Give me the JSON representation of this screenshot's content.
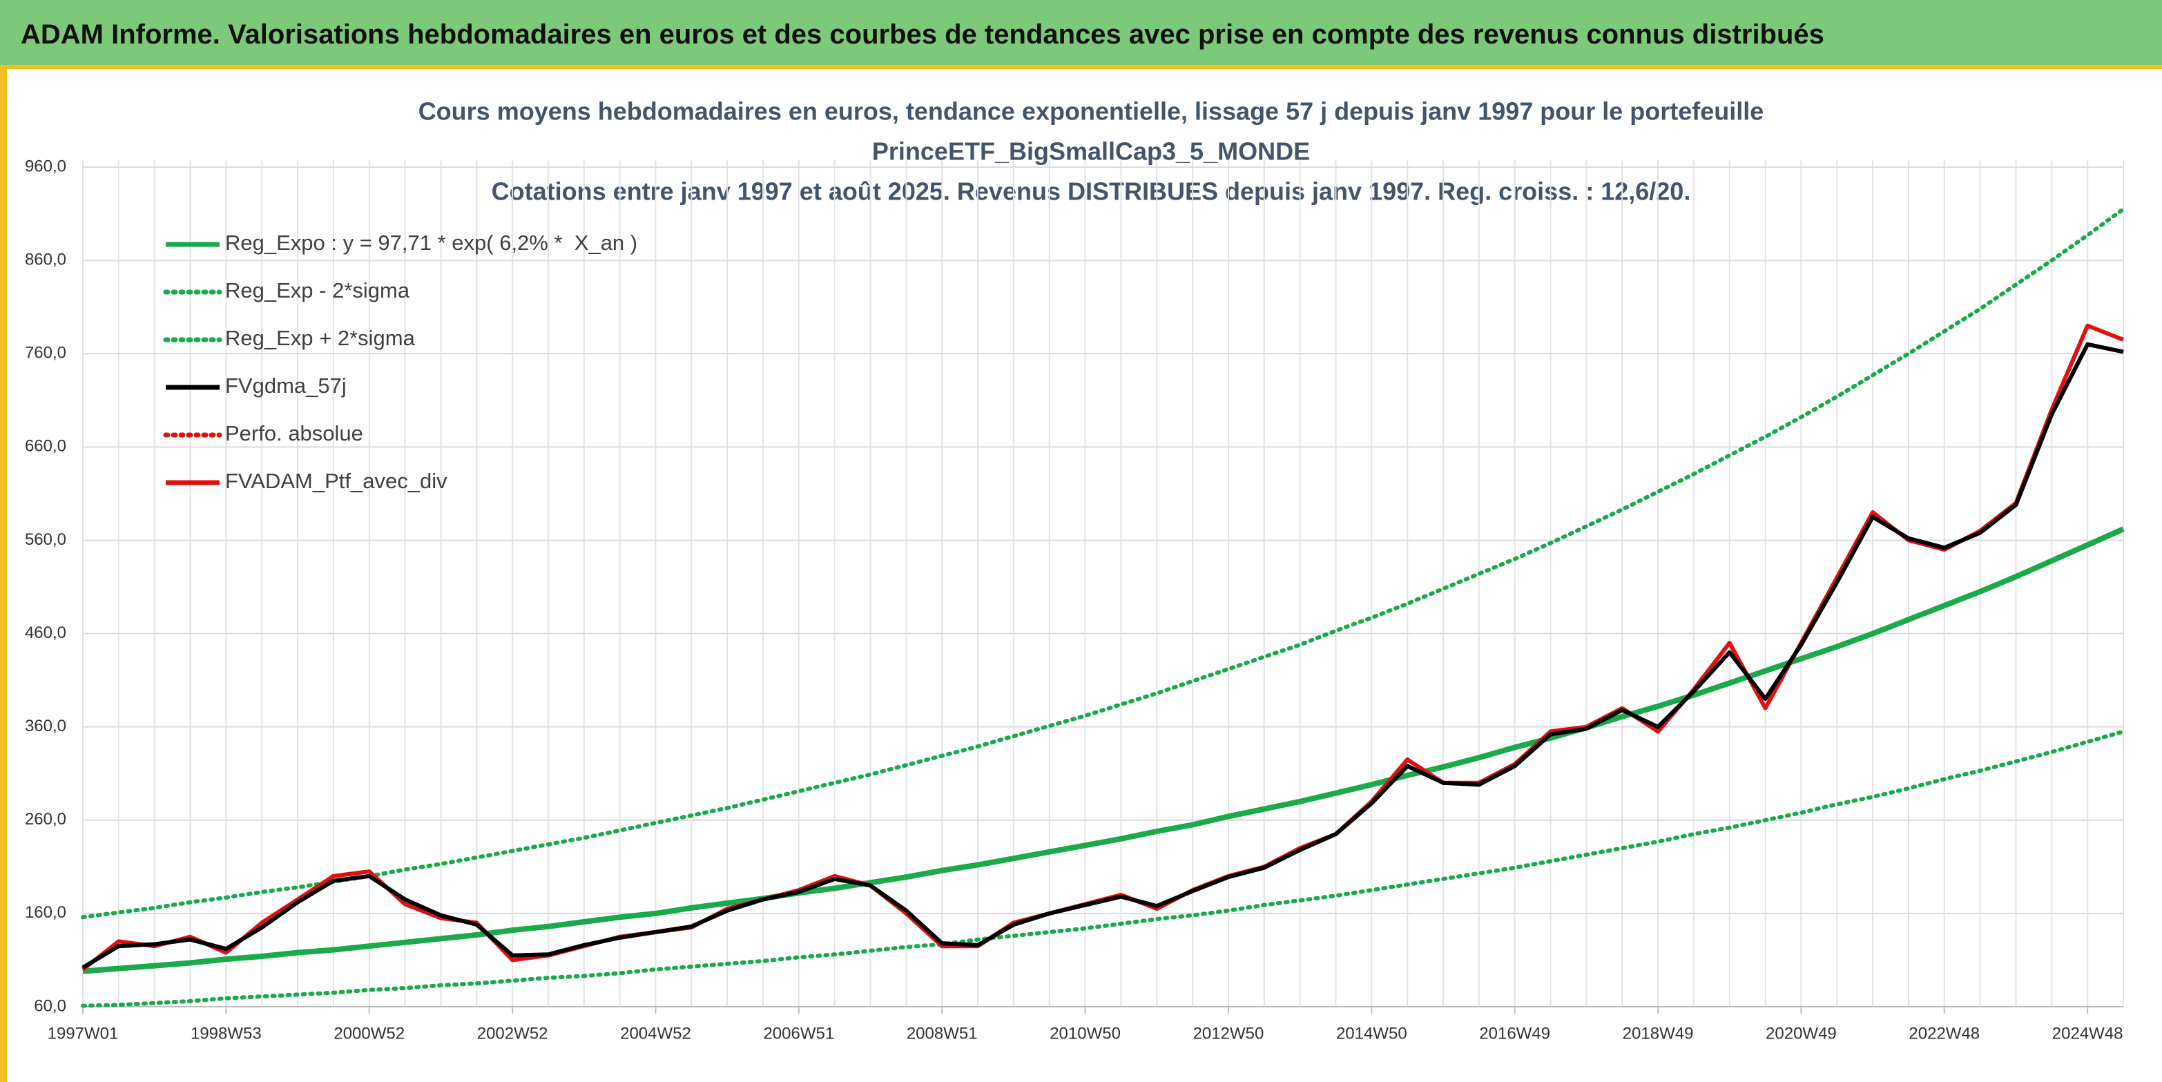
{
  "header": {
    "title": "ADAM Informe. Valorisations hebdomadaires en euros et des courbes de tendances avec prise en compte des revenus connus distribués"
  },
  "chart_data": {
    "type": "line",
    "title": [
      "Cours moyens hebdomadaires en euros, tendance exponentielle, lissage 57 j depuis janv 1997 pour le portefeuille",
      "PrinceETF_BigSmallCap3_5_MONDE",
      "Cotations entre janv 1997 et août 2025. Revenus DISTRIBUES depuis janv 1997. Reg. croiss. : 12,6/20."
    ],
    "categories": [
      "1997W01",
      null,
      null,
      null,
      "1998W53",
      null,
      null,
      null,
      "2000W52",
      null,
      null,
      null,
      "2002W52",
      null,
      null,
      null,
      "2004W52",
      null,
      null,
      null,
      "2006W51",
      null,
      null,
      null,
      "2008W51",
      null,
      null,
      null,
      "2010W50",
      null,
      null,
      null,
      "2012W50",
      null,
      null,
      null,
      "2014W50",
      null,
      null,
      null,
      "2016W49",
      null,
      null,
      null,
      "2018W49",
      null,
      null,
      null,
      "2020W49",
      null,
      null,
      null,
      "2022W48",
      null,
      null,
      null,
      "2024W48",
      null
    ],
    "ylim": [
      60,
      960
    ],
    "yticks": [
      {
        "value": 60,
        "label": "60,0"
      },
      {
        "value": 160,
        "label": "160,0"
      },
      {
        "value": 260,
        "label": "260,0"
      },
      {
        "value": 360,
        "label": "360,0"
      },
      {
        "value": 460,
        "label": "460,0"
      },
      {
        "value": 560,
        "label": "560,0"
      },
      {
        "value": 660,
        "label": "660,0"
      },
      {
        "value": 760,
        "label": "760,0"
      },
      {
        "value": 860,
        "label": "860,0"
      },
      {
        "value": 960,
        "label": "960,0"
      }
    ],
    "grid": true,
    "legend": "top-left",
    "series": [
      {
        "name": "Reg_Expo : y = 97,71 * exp( 6,2% *  X_an )",
        "color": "#1aaa4a",
        "style": "solid",
        "values": [
          98,
          101,
          104,
          107,
          111,
          114,
          118,
          121,
          125,
          129,
          133,
          137,
          142,
          146,
          151,
          156,
          160,
          166,
          171,
          176,
          182,
          187,
          193,
          199,
          206,
          212,
          219,
          226,
          233,
          240,
          248,
          255,
          264,
          272,
          280,
          289,
          298,
          308,
          317,
          327,
          338,
          348,
          359,
          371,
          382,
          394,
          407,
          420,
          433,
          446,
          460,
          475,
          490,
          505,
          521,
          538,
          555,
          572
        ]
      },
      {
        "name": "Reg_Exp - 2*sigma",
        "color": "#1aaa4a",
        "style": "dotted",
        "values": [
          61,
          62,
          64,
          66,
          69,
          71,
          73,
          75,
          78,
          80,
          83,
          85,
          88,
          91,
          93,
          96,
          100,
          103,
          106,
          109,
          113,
          116,
          120,
          124,
          127,
          132,
          136,
          140,
          144,
          149,
          154,
          158,
          163,
          169,
          174,
          179,
          185,
          191,
          197,
          203,
          209,
          216,
          223,
          230,
          237,
          245,
          252,
          260,
          268,
          277,
          285,
          294,
          304,
          313,
          323,
          333,
          344,
          355
        ]
      },
      {
        "name": "Reg_Exp + 2*sigma",
        "color": "#1aaa4a",
        "style": "dotted",
        "values": [
          156,
          161,
          166,
          172,
          177,
          183,
          188,
          194,
          200,
          207,
          213,
          220,
          227,
          234,
          241,
          249,
          257,
          265,
          273,
          282,
          291,
          300,
          309,
          319,
          329,
          339,
          350,
          361,
          372,
          384,
          396,
          409,
          422,
          435,
          448,
          463,
          477,
          492,
          508,
          524,
          540,
          557,
          575,
          593,
          612,
          631,
          651,
          671,
          692,
          714,
          737,
          760,
          784,
          808,
          834,
          860,
          887,
          915
        ]
      },
      {
        "name": "FVgdma_57j",
        "color": "#000000",
        "style": "solid",
        "values": [
          102,
          125,
          127,
          132,
          122,
          145,
          172,
          195,
          200,
          175,
          158,
          148,
          115,
          116,
          126,
          134,
          140,
          146,
          163,
          175,
          183,
          197,
          190,
          163,
          128,
          126,
          148,
          160,
          169,
          178,
          168,
          184,
          199,
          209,
          228,
          245,
          278,
          318,
          300,
          298,
          318,
          352,
          358,
          378,
          360,
          398,
          440,
          390,
          448,
          515,
          585,
          562,
          552,
          568,
          598,
          695,
          770,
          762
        ]
      },
      {
        "name": "Perfo. absolue",
        "color": "#e01010",
        "style": "dotted",
        "values": [
          null,
          null,
          null,
          null,
          null,
          null,
          null,
          null,
          null,
          null,
          null,
          null,
          null,
          null,
          null,
          null,
          null,
          null,
          null,
          null,
          null,
          null,
          null,
          null,
          null,
          null,
          null,
          null,
          null,
          null,
          null,
          null,
          null,
          null,
          null,
          null,
          null,
          null,
          null,
          null,
          null,
          null,
          null,
          null,
          null,
          null,
          null,
          null,
          null,
          null,
          null,
          null,
          null,
          null,
          null,
          null,
          null,
          null
        ]
      },
      {
        "name": "FVADAM_Ptf_avec_div",
        "color": "#e01010",
        "style": "solid",
        "values": [
          100,
          130,
          125,
          135,
          118,
          150,
          175,
          200,
          205,
          170,
          155,
          150,
          110,
          115,
          125,
          135,
          140,
          145,
          165,
          175,
          185,
          200,
          190,
          160,
          125,
          125,
          150,
          160,
          170,
          180,
          165,
          185,
          200,
          210,
          230,
          245,
          280,
          325,
          300,
          300,
          320,
          355,
          360,
          380,
          355,
          400,
          450,
          380,
          450,
          520,
          590,
          560,
          550,
          570,
          600,
          700,
          790,
          775
        ]
      }
    ]
  }
}
